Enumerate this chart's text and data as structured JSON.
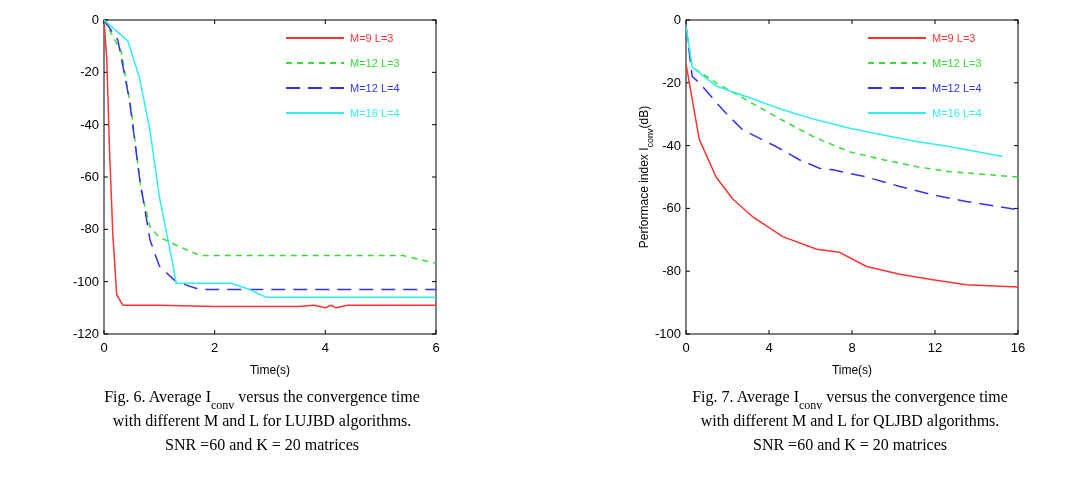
{
  "chart_data": [
    {
      "type": "line",
      "xlabel": "Time(s)",
      "xlim": [
        0,
        6
      ],
      "xticks": [
        0,
        2,
        4,
        6
      ],
      "ylim": [
        -120,
        0
      ],
      "yticks": [
        -120,
        -100,
        -80,
        -60,
        -40,
        -20,
        0
      ],
      "grid": false,
      "legend": "top right",
      "annotations": [
        "Fig. 6. Average I$_{conv}$ versus the convergence time",
        "with different M and L for LUJBD algorithms.",
        "SNR =60 and K = 20 matrices"
      ],
      "series": [
        {
          "name": "M=9 L=3",
          "color": "#ff3333",
          "line_style": "solid",
          "x": [
            0,
            0.05,
            0.1,
            0.16,
            0.23,
            0.34,
            1.0,
            2,
            3,
            3.5,
            3.8,
            4.0,
            4.1,
            4.2,
            4.4,
            5,
            6
          ],
          "values": [
            0,
            -15,
            -50,
            -82,
            -105,
            -109,
            -109,
            -109.5,
            -109.5,
            -109.5,
            -109,
            -110,
            -109,
            -110,
            -109,
            -109,
            -109
          ]
        },
        {
          "name": "M=12 L=3",
          "color": "#33dd33",
          "line_style": "dashed",
          "x": [
            0,
            0.31,
            0.49,
            0.67,
            0.83,
            1.0,
            1.3,
            1.73,
            3,
            5.4,
            6
          ],
          "values": [
            0,
            -12,
            -34,
            -65,
            -79,
            -83,
            -86,
            -90,
            -90,
            -90,
            -93
          ]
        },
        {
          "name": "M=12 L=4",
          "color": "#3333ee",
          "line_style": "longdash",
          "x": [
            0,
            0.25,
            0.46,
            0.64,
            0.83,
            1.0,
            1.3,
            1.73,
            4,
            6
          ],
          "values": [
            0,
            -7.6,
            -30.6,
            -60,
            -84,
            -94,
            -100,
            -103,
            -103,
            -103
          ]
        },
        {
          "name": "M=16 L=4",
          "color": "#33eeee",
          "line_style": "solid",
          "x": [
            0,
            0.43,
            0.64,
            0.83,
            1.0,
            1.25,
            1.3,
            2.3,
            2.63,
            2.93,
            4,
            6
          ],
          "values": [
            0,
            -8,
            -22,
            -42,
            -67.5,
            -94,
            -100.6,
            -100.6,
            -103,
            -106,
            -106,
            -106
          ]
        }
      ]
    },
    {
      "type": "line",
      "xlabel": "Time(s)",
      "ylabel": "Performace index I$_{conv}$(dB)",
      "xlim": [
        0,
        16
      ],
      "xticks": [
        0,
        4,
        8,
        12,
        16
      ],
      "ylim": [
        -100,
        0
      ],
      "yticks": [
        -100,
        -80,
        -60,
        -40,
        -20,
        0
      ],
      "grid": false,
      "legend": "top right",
      "annotations": [
        "Fig. 7. Average I$_{conv}$ versus the convergence time",
        "with different M and L for QLJBD algorithms.",
        "SNR =60 and K = 20 matrices"
      ],
      "series": [
        {
          "name": "M=9 L=3",
          "color": "#ff3333",
          "line_style": "solid",
          "x": [
            0,
            0.64,
            1.45,
            2.25,
            3.2,
            4.66,
            6.3,
            7.4,
            8.7,
            10.3,
            11.9,
            13.5,
            16
          ],
          "values": [
            -14,
            -38,
            -50,
            -57,
            -62.6,
            -69,
            -73,
            -74,
            -78.5,
            -81,
            -82.7,
            -84.3,
            -85
          ]
        },
        {
          "name": "M=12 L=3",
          "color": "#33dd33",
          "line_style": "dashed",
          "x": [
            0,
            0.3,
            1.45,
            3.05,
            4.66,
            6.27,
            7.9,
            9.5,
            11.1,
            12.7,
            16
          ],
          "values": [
            -2,
            -15,
            -20,
            -26,
            -32,
            -37.6,
            -42,
            -44.5,
            -46.7,
            -48.3,
            -50
          ]
        },
        {
          "name": "M=12 L=4",
          "color": "#3333ee",
          "line_style": "longdash",
          "x": [
            0,
            0.3,
            0.64,
            1.77,
            2.73,
            4.34,
            5.46,
            6.43,
            7.07,
            8.7,
            10.3,
            11.9,
            13.5,
            16
          ],
          "values": [
            -2,
            -18,
            -20,
            -28.6,
            -35,
            -40.3,
            -44.5,
            -47.2,
            -47.7,
            -50,
            -53,
            -55.7,
            -57.8,
            -60.4
          ]
        },
        {
          "name": "M=16 L=4",
          "color": "#33eeee",
          "line_style": "solid",
          "x": [
            0,
            0.3,
            1.45,
            3.37,
            4.66,
            6.27,
            7.9,
            9.5,
            11.1,
            12.7,
            15.26
          ],
          "values": [
            -2,
            -15,
            -21,
            -25.5,
            -28.6,
            -31.8,
            -34.5,
            -36.6,
            -38.7,
            -40.3,
            -43.5
          ]
        }
      ]
    }
  ]
}
